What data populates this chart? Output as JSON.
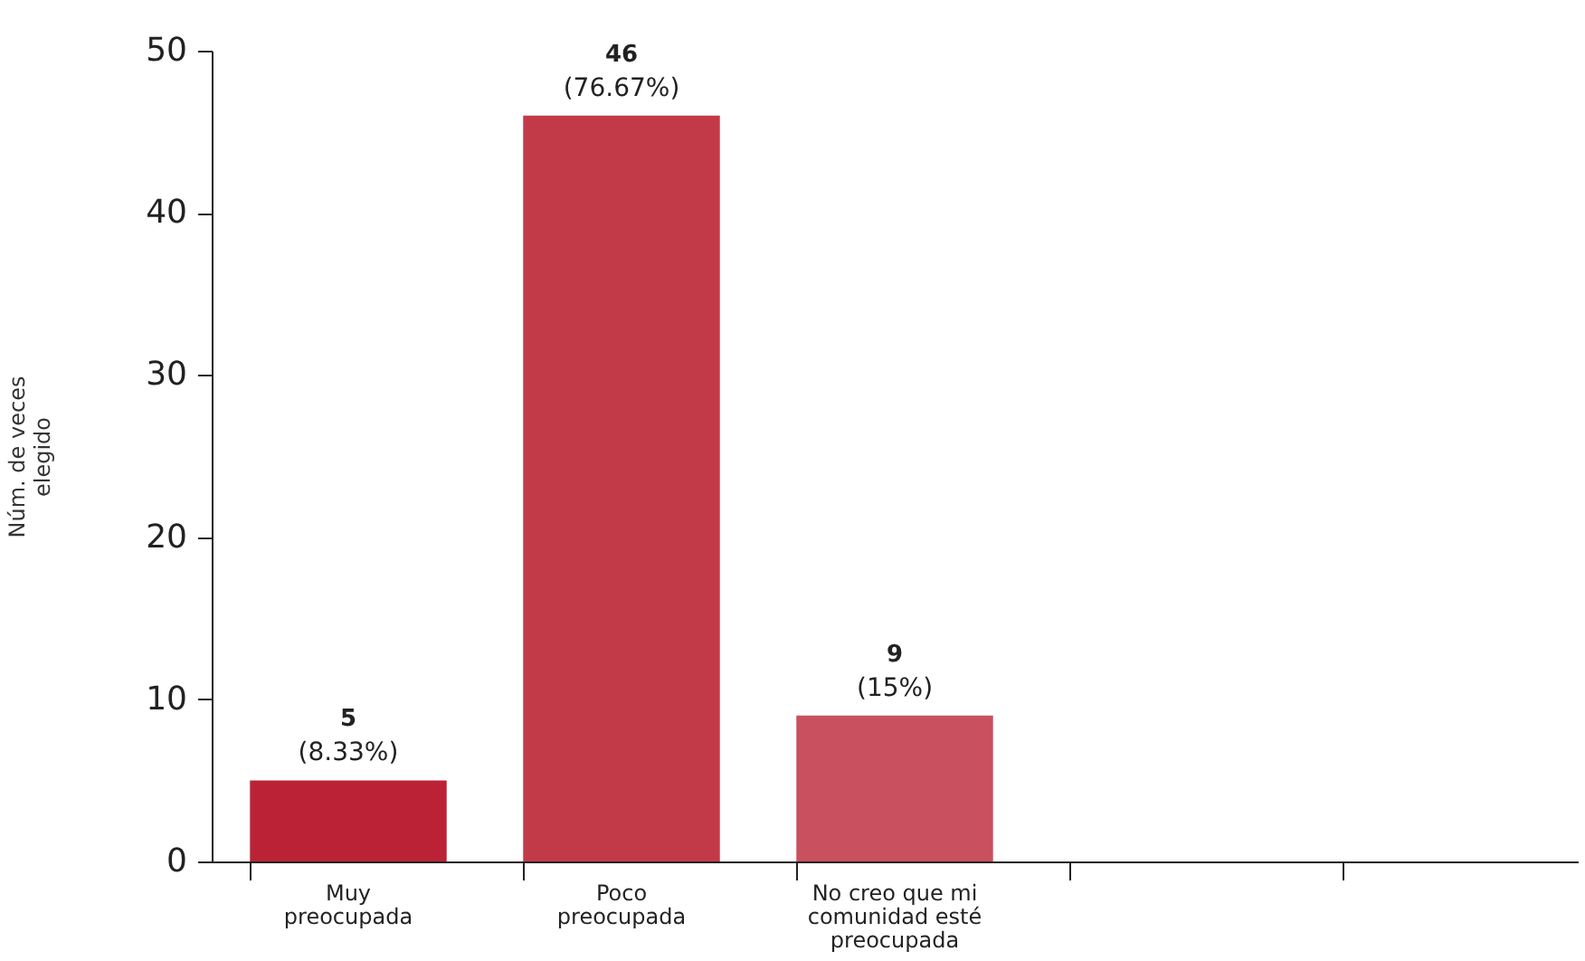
{
  "chart_data": {
    "type": "bar",
    "ylabel": "Núm. de veces elegido",
    "categories": [
      "Muy preocupada",
      "Poco preocupada",
      "No creo que mi comunidad esté preocupada",
      null,
      null
    ],
    "values": [
      5,
      46,
      9,
      null,
      null
    ],
    "colors": [
      "#bb2235",
      "#c23a48",
      "#c9505e",
      "#c9505e",
      "#c9505e"
    ],
    "ylim": [
      0,
      50
    ],
    "yticks": [
      0,
      10,
      20,
      30,
      40,
      50
    ],
    "data_labels": true,
    "annotations": [
      {
        "text": "(8.33%)",
        "x": "Muy preocupada",
        "y": 5
      },
      {
        "text": "(76.67%)",
        "x": "Poco preocupada",
        "y": 46
      },
      {
        "text": "(15%)",
        "x": "No creo que mi comunidad esté preocupada",
        "y": 9
      }
    ],
    "grid": false,
    "legend": false
  }
}
